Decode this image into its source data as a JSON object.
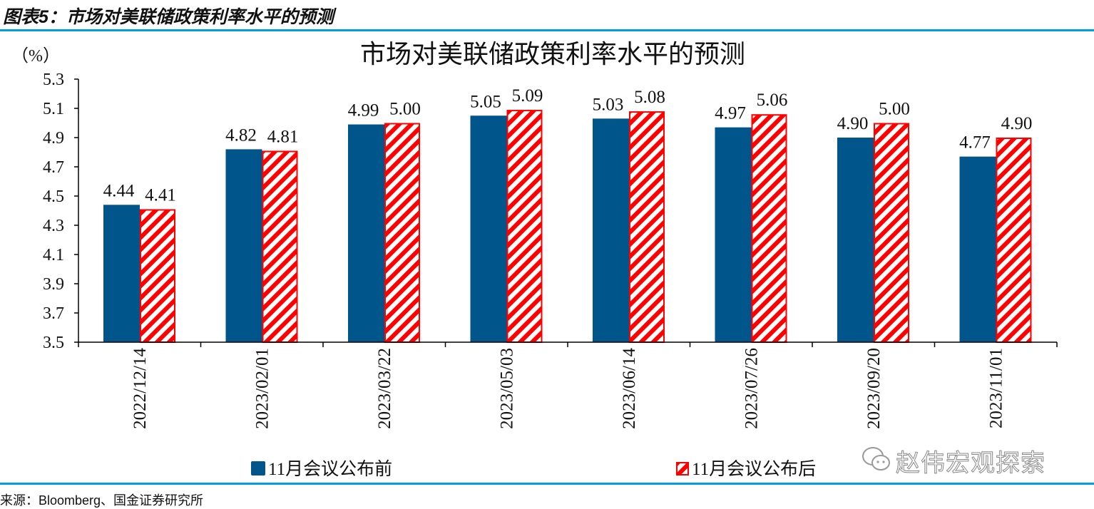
{
  "figure_title": "图表5：市场对美联储政策利率水平的预测",
  "source": "来源：Bloomberg、国金证券研究所",
  "watermark": "赵伟宏观探索",
  "colors": {
    "series1": "#00558a",
    "series2": "#ff0000",
    "rule": "#009ede"
  },
  "chart_data": {
    "type": "bar",
    "title": "市场对美联储政策利率水平的预测",
    "ylabel": "（%）",
    "ylim": [
      3.5,
      5.3
    ],
    "yticks": [
      "3.5",
      "3.7",
      "3.9",
      "4.1",
      "4.3",
      "4.5",
      "4.7",
      "4.9",
      "5.1",
      "5.3"
    ],
    "grid": false,
    "legend_position": "bottom",
    "categories": [
      "2022/12/14",
      "2023/02/01",
      "2023/03/22",
      "2023/05/03",
      "2023/06/14",
      "2023/07/26",
      "2023/09/20",
      "2023/11/01"
    ],
    "series": [
      {
        "name": "11月会议公布前",
        "values": [
          4.44,
          4.82,
          4.99,
          5.05,
          5.03,
          4.97,
          4.9,
          4.77
        ],
        "labels": [
          "4.44",
          "4.82",
          "4.99",
          "5.05",
          "5.03",
          "4.97",
          "4.90",
          "4.77"
        ],
        "style": "solid"
      },
      {
        "name": "11月会议公布后",
        "values": [
          4.41,
          4.81,
          5.0,
          5.09,
          5.08,
          5.06,
          5.0,
          4.9
        ],
        "labels": [
          "4.41",
          "4.81",
          "5.00",
          "5.09",
          "5.08",
          "5.06",
          "5.00",
          "4.90"
        ],
        "style": "hatched"
      }
    ]
  }
}
